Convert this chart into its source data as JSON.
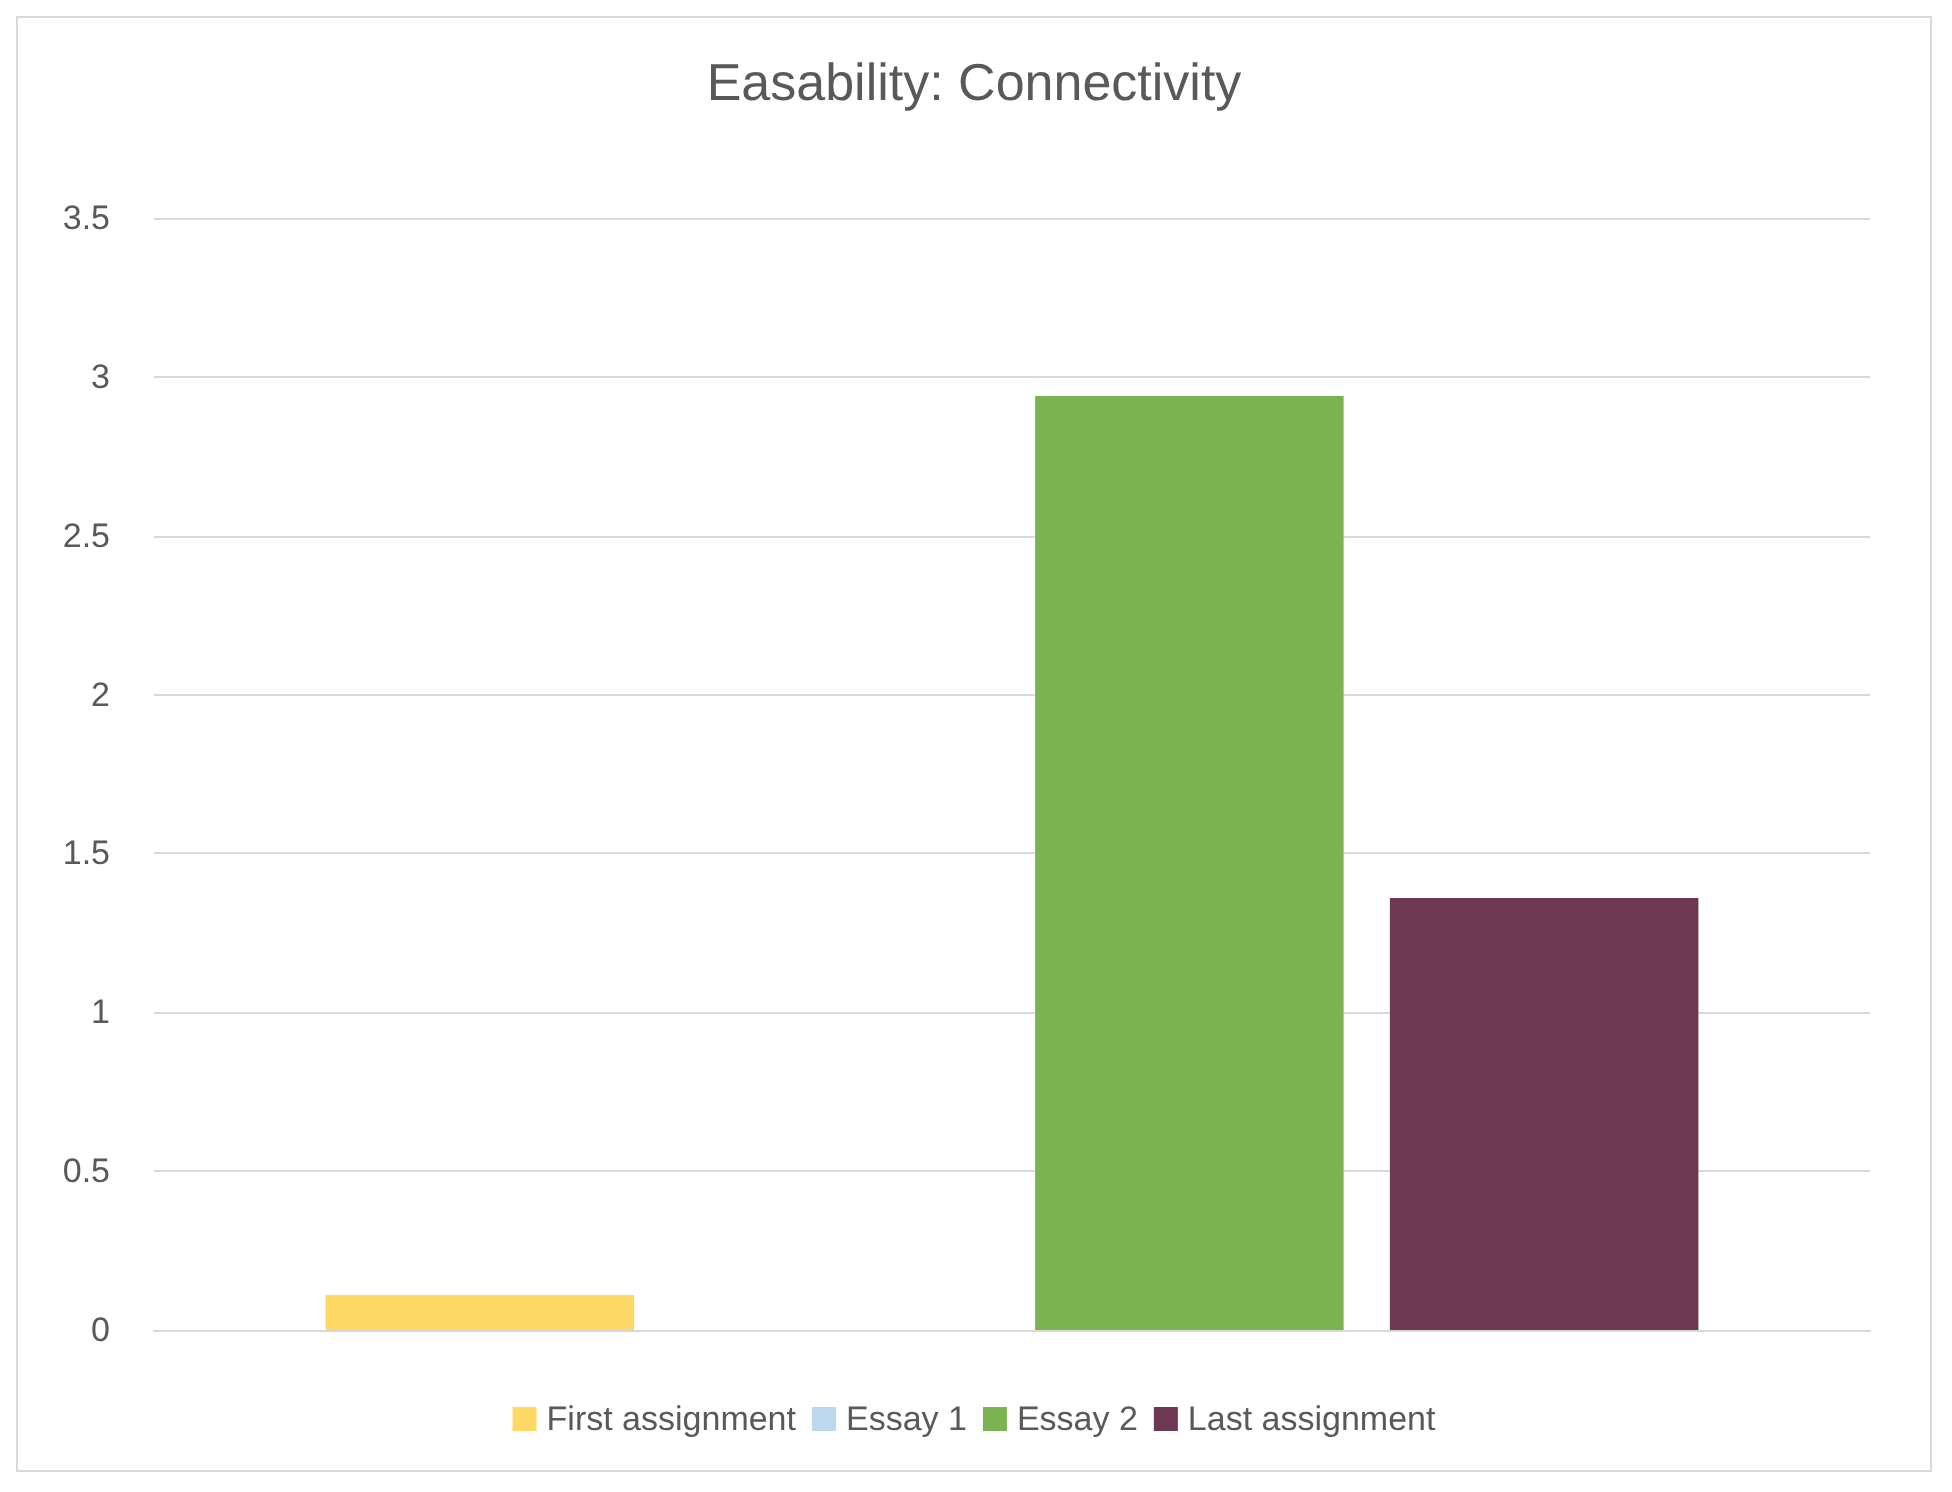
{
  "chart_data": {
    "type": "bar",
    "title": "Easability: Connectivity",
    "categories": [
      null
    ],
    "series": [
      {
        "name": "First assignment",
        "color": "#ffd966",
        "values": [
          0.11
        ]
      },
      {
        "name": "Essay 1",
        "color": "#bdd7ee",
        "values": [
          0
        ]
      },
      {
        "name": "Essay 2",
        "color": "#7ab34f",
        "values": [
          2.94
        ]
      },
      {
        "name": "Last assignment",
        "color": "#6d3852",
        "values": [
          1.36
        ]
      }
    ],
    "ylim": [
      0,
      3.5
    ],
    "yticks": [
      0,
      0.5,
      1,
      1.5,
      2,
      2.5,
      3,
      3.5
    ],
    "grid": "y",
    "legend": "bottom"
  }
}
